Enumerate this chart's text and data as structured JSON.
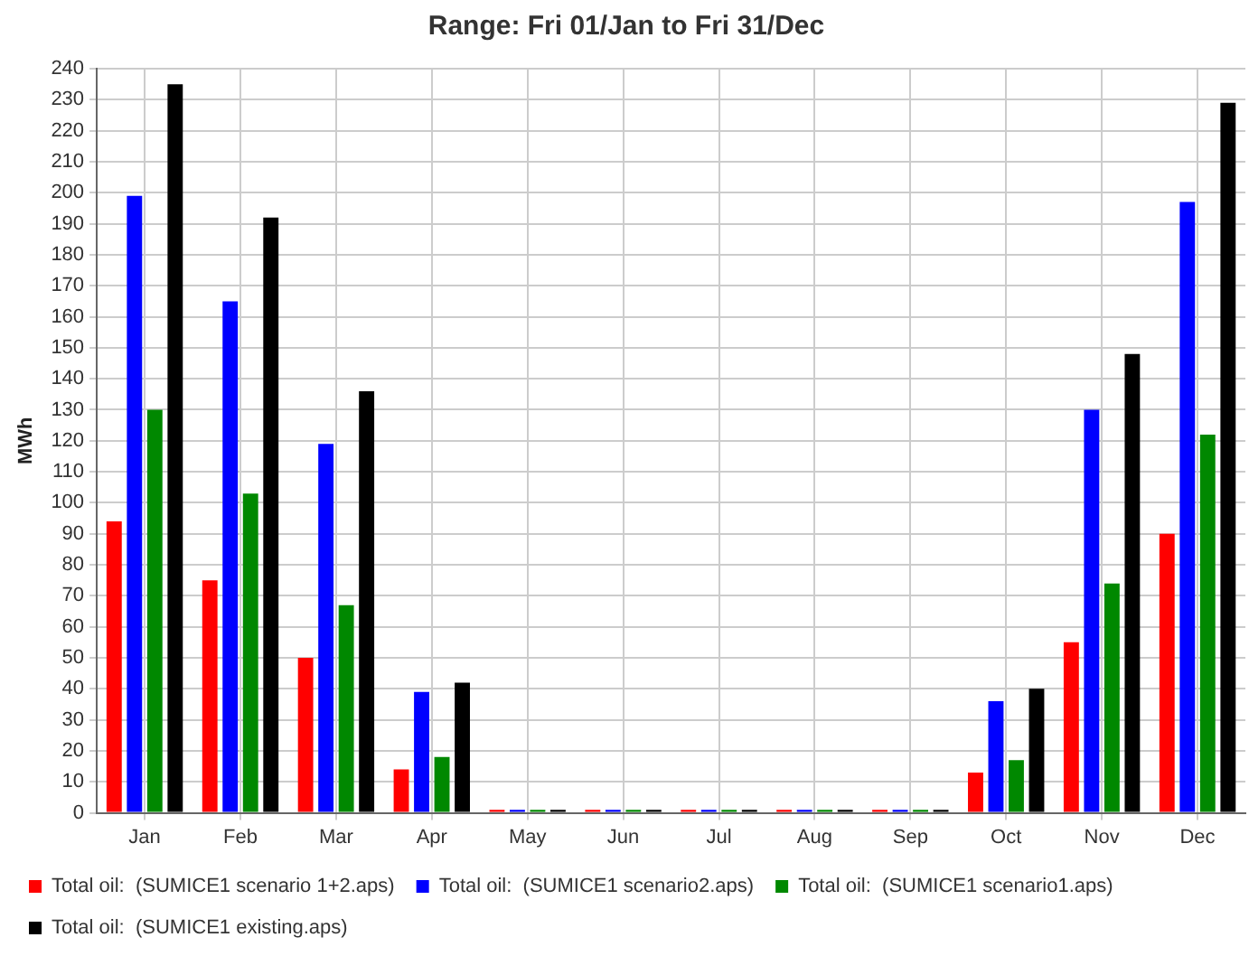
{
  "chart_data": {
    "type": "bar",
    "title": "Range: Fri 01/Jan to Fri 31/Dec",
    "ylabel": "MWh",
    "categories": [
      "Jan",
      "Feb",
      "Mar",
      "Apr",
      "May",
      "Jun",
      "Jul",
      "Aug",
      "Sep",
      "Oct",
      "Nov",
      "Dec"
    ],
    "series": [
      {
        "name": "Total oil:  (SUMICE1 scenario 1+2.aps)",
        "color": "#ff0000",
        "values": [
          94,
          75,
          50,
          14,
          1,
          1,
          1,
          1,
          1,
          13,
          55,
          90
        ]
      },
      {
        "name": "Total oil:  (SUMICE1 scenario2.aps)",
        "color": "#0000ff",
        "values": [
          199,
          165,
          119,
          39,
          1,
          1,
          1,
          1,
          1,
          36,
          130,
          197
        ]
      },
      {
        "name": "Total oil:  (SUMICE1 scenario1.aps)",
        "color": "#008800",
        "values": [
          130,
          103,
          67,
          18,
          1,
          1,
          1,
          1,
          1,
          17,
          74,
          122
        ]
      },
      {
        "name": "Total oil:  (SUMICE1 existing.aps)",
        "color": "#000000",
        "values": [
          235,
          192,
          136,
          42,
          1,
          1,
          1,
          1,
          1,
          40,
          148,
          229
        ]
      }
    ],
    "ylim": [
      0,
      240
    ],
    "yticks": [
      0,
      10,
      20,
      30,
      40,
      50,
      60,
      70,
      80,
      90,
      100,
      110,
      120,
      130,
      140,
      150,
      160,
      170,
      180,
      190,
      200,
      210,
      220,
      230,
      240
    ],
    "grid": true,
    "legend": "bottom left"
  }
}
